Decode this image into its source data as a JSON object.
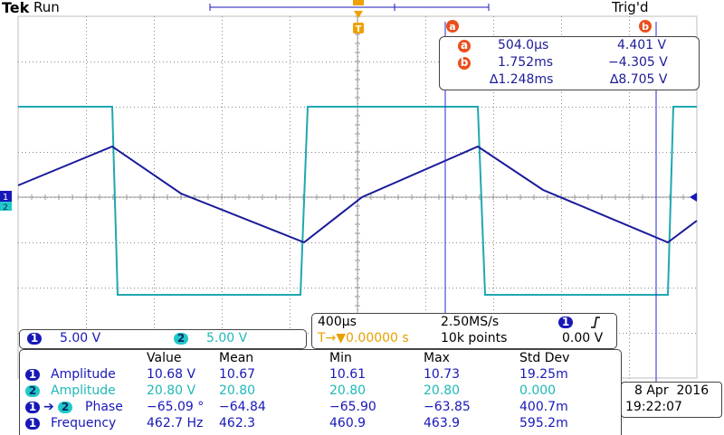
{
  "header": {
    "brand": "Tek",
    "run_state": "Run",
    "trigger_state": "Trig'd"
  },
  "markers": {
    "trigger_t": "T",
    "cursor_a": "a",
    "cursor_b": "b"
  },
  "cursor_readout": {
    "a_time": "504.0µs",
    "a_volt": "4.401 V",
    "b_time": "1.752ms",
    "b_volt": "−4.305 V",
    "delta_time": "∆1.248ms",
    "delta_volt": "∆8.705 V"
  },
  "channels": [
    {
      "num": "1",
      "scale": "5.00 V",
      "color": "#1818b8"
    },
    {
      "num": "2",
      "scale": "5.00 V",
      "color": "#20b8b8"
    }
  ],
  "timebase": {
    "horizontal": "400µs",
    "sample_rate": "2.50MS/s",
    "trigger_channel": "1",
    "trigger_slope_icon": "rising-edge-icon",
    "position_label": "T→▼0.00000 s",
    "record_length": "10k points",
    "trigger_level": "0.00 V"
  },
  "measurements": {
    "headers": [
      "Value",
      "Mean",
      "Min",
      "Max",
      "Std Dev"
    ],
    "rows": [
      {
        "ch": "1",
        "ch2": "",
        "name": "Amplitude",
        "value": "10.68 V",
        "mean": "10.67",
        "min": "10.61",
        "max": "10.73",
        "std": "19.25m"
      },
      {
        "ch": "2",
        "ch2": "",
        "name": "Amplitude",
        "value": "20.80 V",
        "mean": "20.80",
        "min": "20.80",
        "max": "20.80",
        "std": "0.000"
      },
      {
        "ch": "1",
        "ch2": "2",
        "name": "Phase",
        "value": "−65.09 °",
        "mean": "−64.84",
        "min": "−65.90",
        "max": "−63.85",
        "std": "400.7m"
      },
      {
        "ch": "1",
        "ch2": "",
        "name": "Frequency",
        "value": "462.7 Hz",
        "mean": "462.3",
        "min": "460.9",
        "max": "463.9",
        "std": "595.2m"
      }
    ]
  },
  "datetime": {
    "date": "8 Apr  2016",
    "time": "19:22:07"
  }
}
